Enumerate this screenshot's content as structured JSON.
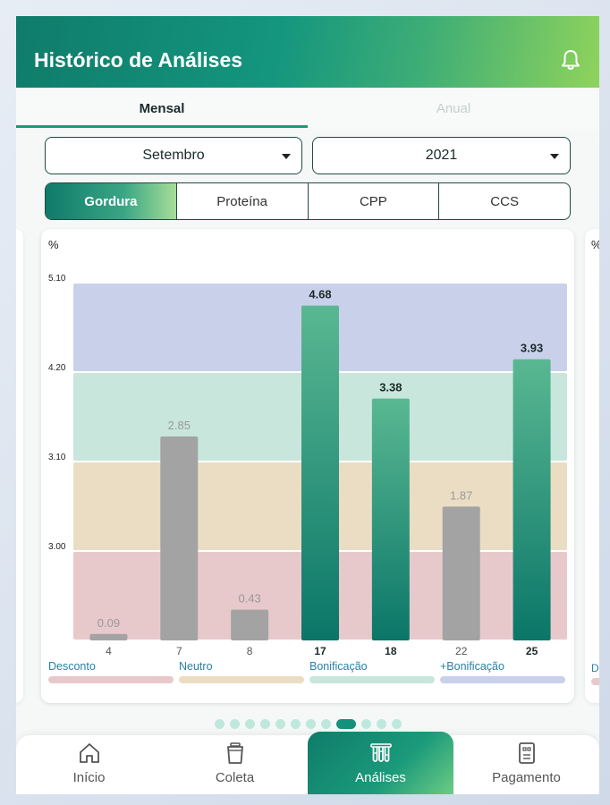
{
  "header": {
    "title": "Histórico de Análises",
    "icon": "bell-icon"
  },
  "period_tabs": [
    {
      "label": "Mensal",
      "active": true
    },
    {
      "label": "Anual",
      "active": false
    }
  ],
  "filters": {
    "month": "Setembro",
    "year": "2021"
  },
  "metric_tabs": [
    {
      "label": "Gordura",
      "active": true
    },
    {
      "label": "Proteína",
      "active": false
    },
    {
      "label": "CPP",
      "active": false
    },
    {
      "label": "CCS",
      "active": false
    }
  ],
  "chart_data": {
    "type": "bar",
    "ylabel": "%",
    "y_ticks": [
      "5.10",
      "4.20",
      "3.10",
      "3.00"
    ],
    "categories": [
      "4",
      "7",
      "8",
      "17",
      "18",
      "22",
      "25"
    ],
    "values": [
      0.09,
      2.85,
      0.43,
      4.68,
      3.38,
      1.87,
      3.93
    ],
    "value_labels": [
      "0.09",
      "2.85",
      "0.43",
      "4.68",
      "3.38",
      "1.87",
      "3.93"
    ],
    "highlighted": [
      false,
      false,
      false,
      true,
      true,
      false,
      true
    ],
    "bands": [
      {
        "name": "Desconto",
        "color": "#e8c9cb"
      },
      {
        "name": "Neutro",
        "color": "#ebddc3"
      },
      {
        "name": "Bonificação",
        "color": "#c8e6dc"
      },
      {
        "name": "+Bonificação",
        "color": "#c9d1ea"
      }
    ]
  },
  "pagination": {
    "total": 12,
    "active_index": 8
  },
  "bottom_nav": [
    {
      "label": "Início",
      "icon": "home-icon",
      "active": false
    },
    {
      "label": "Coleta",
      "icon": "bucket-icon",
      "active": false
    },
    {
      "label": "Análises",
      "icon": "test-tubes-icon",
      "active": true
    },
    {
      "label": "Pagamento",
      "icon": "receipt-icon",
      "active": false
    }
  ],
  "colors": {
    "accent": "#15907b",
    "bar_gray": "#a3a3a3",
    "bar_green_top": "#59b892",
    "bar_green_bottom": "#0b7668"
  }
}
